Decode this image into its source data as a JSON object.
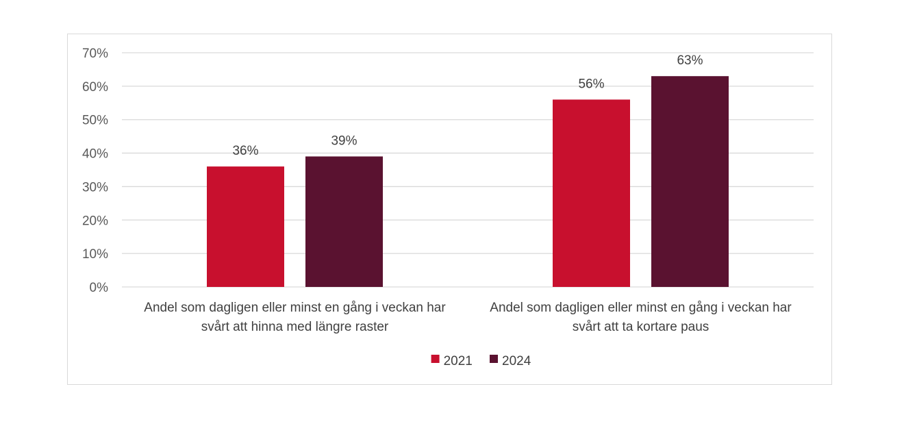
{
  "chart_data": {
    "type": "bar",
    "categories": [
      [
        "Andel som dagligen eller minst en gång i veckan har",
        "svårt att hinna med längre raster"
      ],
      [
        "Andel som dagligen eller minst en gång i veckan har",
        "svårt att ta kortare paus"
      ]
    ],
    "series": [
      {
        "name": "2021",
        "values": [
          36,
          56
        ],
        "labels": [
          "36%",
          "56%"
        ],
        "color": "#c8102e"
      },
      {
        "name": "2024",
        "values": [
          39,
          63
        ],
        "labels": [
          "39%",
          "63%"
        ],
        "color": "#5a1230"
      }
    ],
    "ylim": [
      0,
      70
    ],
    "yticks": [
      "0%",
      "10%",
      "20%",
      "30%",
      "40%",
      "50%",
      "60%",
      "70%"
    ],
    "grid": true,
    "legend_position": "bottom",
    "gridline_color": "#d9d9d9"
  }
}
